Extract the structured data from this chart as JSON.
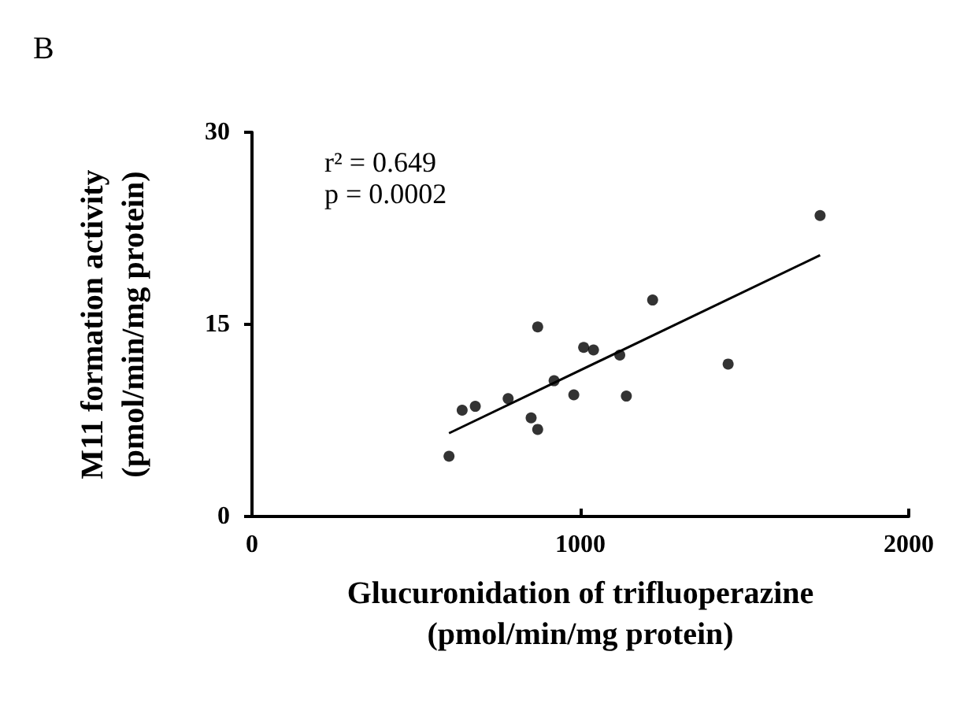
{
  "chart_data": {
    "type": "scatter",
    "title": "B",
    "xlabel": "Glucuronidation of trifluoperazine\n(pmol/min/mg protein)",
    "ylabel": "M11 formation activity\n(pmol/min/mg protein)",
    "annotations": [
      "r² = 0.649",
      "p = 0.0002"
    ],
    "xlim": [
      0,
      2000
    ],
    "xticks": [
      0,
      1000,
      2000
    ],
    "ylim": [
      0,
      30
    ],
    "yticks": [
      0,
      15,
      30
    ],
    "grid": false,
    "marker": "circle",
    "series": [
      {
        "color": "#000000",
        "x": [
          600,
          640,
          680,
          780,
          850,
          870,
          870,
          920,
          980,
          1010,
          1040,
          1120,
          1140,
          1220,
          1450,
          1730
        ],
        "values": [
          4.7,
          8.3,
          8.6,
          9.2,
          7.7,
          6.8,
          14.8,
          10.6,
          9.5,
          13.2,
          13,
          12.6,
          9.4,
          16.9,
          11.9,
          23.5
        ]
      },
      {
        "type": "line",
        "color": "#000000",
        "x": [
          600,
          1730
        ],
        "values": [
          6.5,
          20.4
        ],
        "marker": "none",
        "line_style": "solid"
      }
    ]
  }
}
